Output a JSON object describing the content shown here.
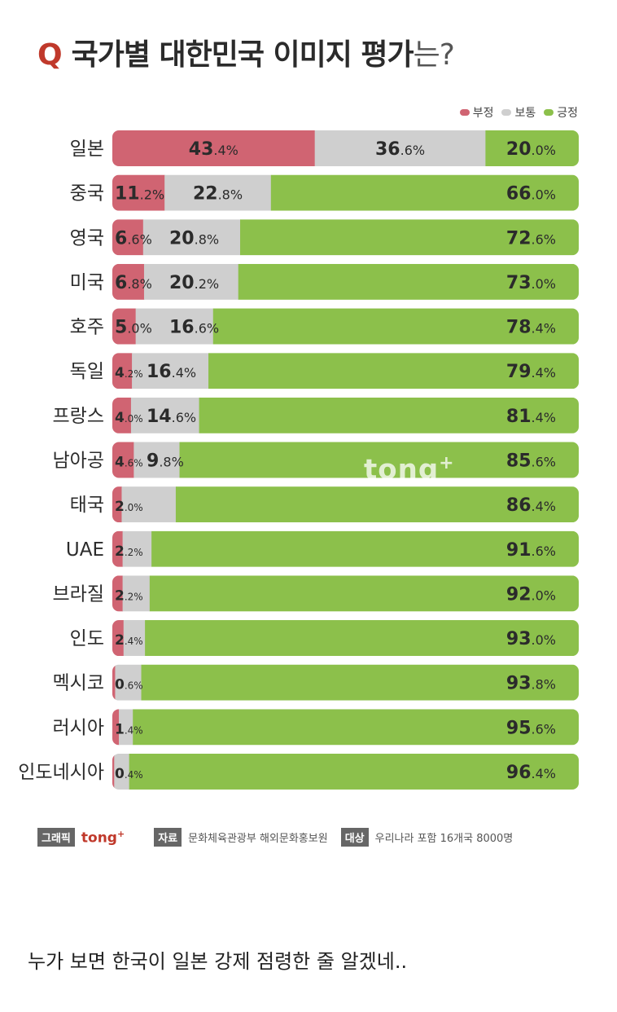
{
  "header": {
    "q_mark": "Q",
    "title_main": "국가별 대한민국 이미지 평가",
    "title_suffix": "는?"
  },
  "legend": {
    "negative": "부정",
    "neutral": "보통",
    "positive": "긍정"
  },
  "colors": {
    "negative": "#d06472",
    "neutral": "#cfcfcf",
    "positive": "#8cc04b"
  },
  "chart_data": {
    "type": "bar",
    "orientation": "horizontal",
    "stacked": true,
    "categories": [
      "일본",
      "중국",
      "영국",
      "미국",
      "호주",
      "독일",
      "프랑스",
      "남아공",
      "태국",
      "UAE",
      "브라질",
      "인도",
      "멕시코",
      "러시아",
      "인도네시아"
    ],
    "series": [
      {
        "name": "부정",
        "values": [
          43.4,
          11.2,
          6.6,
          6.8,
          5.0,
          4.2,
          4.0,
          4.6,
          2.0,
          2.2,
          2.2,
          2.4,
          0.6,
          1.4,
          0.4
        ]
      },
      {
        "name": "보통",
        "values": [
          36.6,
          22.8,
          20.8,
          20.2,
          16.6,
          16.4,
          14.6,
          9.8,
          null,
          null,
          null,
          null,
          null,
          null,
          null
        ]
      },
      {
        "name": "긍정",
        "values": [
          20.0,
          66.0,
          72.6,
          73.0,
          78.4,
          79.4,
          81.4,
          85.6,
          86.4,
          91.6,
          92.0,
          93.0,
          93.8,
          95.6,
          96.4
        ]
      }
    ],
    "hidden_values": {
      "보통": [
        null,
        null,
        null,
        null,
        null,
        null,
        null,
        null,
        11.6,
        6.2,
        5.8,
        4.6,
        5.6,
        3.0,
        3.2
      ]
    },
    "label_suffix": "%",
    "legend_position": "top-right",
    "grid": false
  },
  "watermark": {
    "text": "tong",
    "plus": "+"
  },
  "footer": {
    "graphic_tag": "그래픽",
    "brand": "tong",
    "brand_plus": "+",
    "source_tag": "자료",
    "source_text": "문화체육관광부 해외문화홍보원",
    "target_tag": "대상",
    "target_text": "우리나라 포함 16개국 8000명"
  },
  "comment": "누가 보면 한국이 일본 강제 점령한 줄 알겠네.."
}
